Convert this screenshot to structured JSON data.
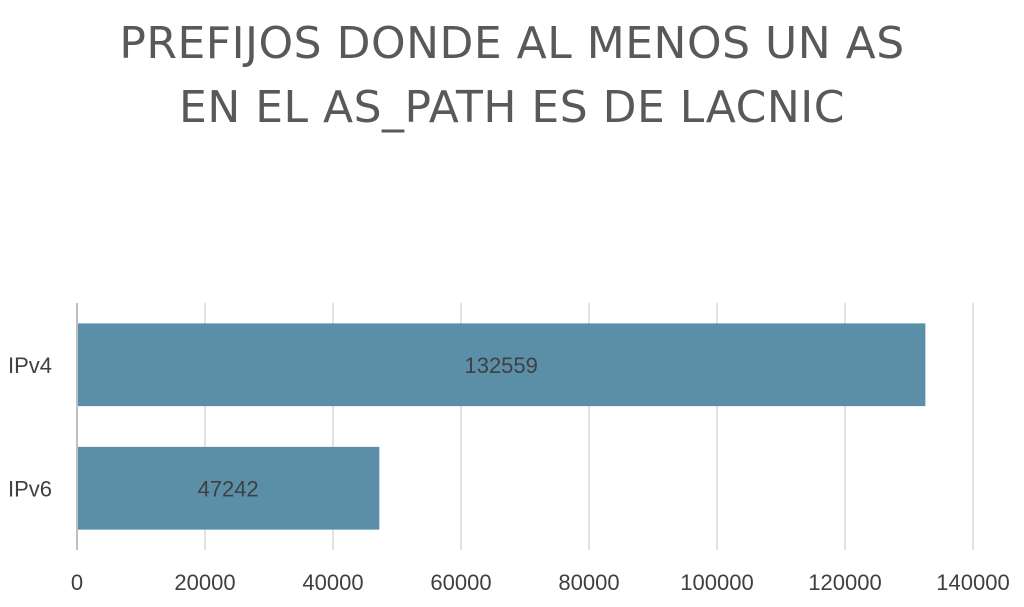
{
  "chart_data": {
    "type": "bar",
    "orientation": "horizontal",
    "title_lines": [
      "PREFIJOS DONDE AL MENOS UN AS",
      "EN EL AS_PATH ES DE LACNIC"
    ],
    "categories": [
      "IPv4",
      "IPv6"
    ],
    "values": [
      132559,
      47242
    ],
    "data_labels": [
      "132559",
      "47242"
    ],
    "xlim": [
      0,
      140000
    ],
    "xticks": [
      0,
      20000,
      40000,
      60000,
      80000,
      100000,
      120000,
      140000
    ],
    "xtick_labels": [
      "0",
      "20000",
      "40000",
      "60000",
      "80000",
      "100000",
      "120000",
      "140000"
    ],
    "xlabel": "",
    "ylabel": "",
    "grid": true,
    "legend": "none",
    "colors": {
      "bar": "#5B8FA8",
      "grid": "#D9D9D9",
      "axis": "#BFBFBF",
      "text": "#404040",
      "title": "#595959"
    }
  }
}
